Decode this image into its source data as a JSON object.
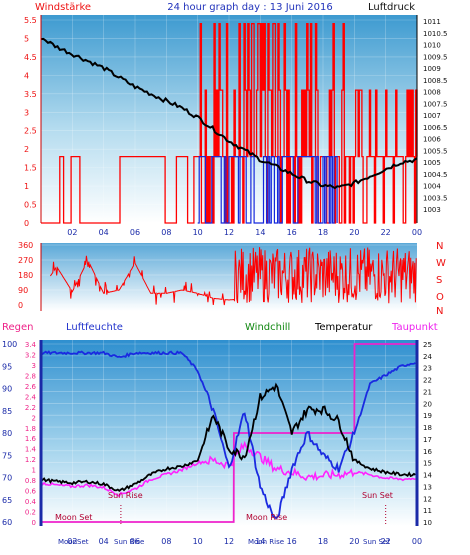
{
  "colors": {
    "wind_label": "#ee1111",
    "title": "#2233bb",
    "pressure_label": "#111111",
    "rain": "#ee2288",
    "humidity": "#2233cc",
    "windchill": "#118811",
    "temperature": "#000000",
    "dewpoint": "#ee22ee",
    "axis_blue": "#1a2aa8",
    "moon": "#b00030",
    "sun": "#b00030"
  },
  "header": {
    "wind_label": "Windstärke",
    "title": "24 hour graph day : 13 Juni 2016",
    "pressure_label": "Luftdruck"
  },
  "legend": {
    "rain": "Regen",
    "humidity": "Luftfeuchte",
    "windchill": "Windchill",
    "temperature": "Temperatur",
    "dewpoint": "Taupunkt"
  },
  "compass": [
    "N",
    "W",
    "S",
    "O",
    "N"
  ],
  "events": {
    "moon_set": "Moon Set",
    "sun_rise": "Sun Rise",
    "moon_rise": "Moon Rise",
    "sun_set": "Sun Set",
    "moon_set_bottom": "MoonSet",
    "sun_rise_bottom": "Sun Rise",
    "moon_rise_bottom": "Moon Rise",
    "sun_set_bottom": "Sun Set"
  },
  "chart_data": [
    {
      "type": "line",
      "title": "24 hour graph day : 13 Juni 2016",
      "x_ticks": [
        "02",
        "04",
        "06",
        "08",
        "10",
        "12",
        "14",
        "16",
        "18",
        "20",
        "22",
        "00"
      ],
      "left_axis": {
        "label": "Windstärke",
        "ylim": [
          0,
          5
        ],
        "ticks": [
          "0",
          "0.5",
          "1",
          "1.5",
          "2",
          "2.5",
          "3",
          "3.5",
          "4",
          "4.5",
          "5",
          "5.5"
        ]
      },
      "right_axis": {
        "label": "Luftdruck",
        "ylim": [
          1003,
          1011
        ],
        "ticks": [
          "1003",
          "1003.5",
          "1004",
          "1004.5",
          "1005",
          "1005.5",
          "1006",
          "1006.5",
          "1007",
          "1007.5",
          "1008",
          "1008.5",
          "1009",
          "1009.5",
          "1010",
          "1010.5",
          "1011"
        ]
      },
      "series": [
        {
          "name": "Luftdruck",
          "x": [
            0,
            1,
            2,
            3,
            4,
            5,
            6,
            7,
            8,
            9,
            10,
            11,
            12,
            13,
            14,
            15,
            16,
            17,
            18,
            19,
            20,
            21,
            22,
            23,
            24
          ],
          "values": [
            1010.3,
            1009.9,
            1009.6,
            1009.3,
            1009.0,
            1008.6,
            1008.2,
            1007.9,
            1007.6,
            1007.3,
            1006.9,
            1006.4,
            1005.9,
            1005.5,
            1005.1,
            1004.8,
            1004.5,
            1004.2,
            1004.0,
            1003.9,
            1004.1,
            1004.4,
            1004.7,
            1005.0,
            1005.1
          ]
        }
      ],
      "wind_note": "gust (red) and average (blue) bars, mostly calm before 10h, gusts to 5.5 between 10h and 19h"
    },
    {
      "type": "line",
      "left_axis": {
        "ticks": [
          "0",
          "90",
          "180",
          "270",
          "360"
        ],
        "ylim": [
          0,
          360
        ]
      },
      "right_axis": {
        "ticks": [
          "N",
          "W",
          "S",
          "O",
          "N"
        ]
      },
      "series": [
        {
          "name": "Windrichtung",
          "x": [
            0,
            1,
            2,
            3,
            4,
            5,
            6,
            7,
            8,
            9,
            10,
            11,
            12,
            13,
            14,
            15,
            16,
            17,
            18,
            19,
            20,
            21,
            22,
            23,
            24
          ],
          "values": [
            90,
            230,
            80,
            270,
            70,
            90,
            250,
            70,
            70,
            90,
            70,
            40,
            30,
            40,
            200,
            240,
            220,
            250,
            180,
            240,
            200,
            160,
            210,
            240,
            260
          ]
        }
      ]
    },
    {
      "type": "line",
      "left_axis_rain": {
        "label": "Regen",
        "ylim": [
          0,
          3.4
        ],
        "ticks": [
          "0",
          "0.2",
          "0.4",
          "0.6",
          "0.8",
          "1",
          "1.2",
          "1.4",
          "1.6",
          "1.8",
          "2",
          "2.2",
          "2.4",
          "2.6",
          "2.8",
          "3",
          "3.2",
          "3.4"
        ]
      },
      "left_axis_humidity": {
        "label": "Luftfeuchte",
        "ylim": [
          60,
          100
        ],
        "ticks": [
          "60",
          "65",
          "70",
          "75",
          "80",
          "85",
          "90",
          "95",
          "100"
        ]
      },
      "right_axis": {
        "label": "Temperatur",
        "ylim": [
          10,
          25
        ],
        "ticks": [
          "10",
          "11",
          "12",
          "13",
          "14",
          "15",
          "16",
          "17",
          "18",
          "19",
          "20",
          "21",
          "22",
          "23",
          "24",
          "25"
        ]
      },
      "series": [
        {
          "name": "Luftfeuchte",
          "x": [
            0,
            1,
            2,
            3,
            4,
            5,
            6,
            7,
            8,
            9,
            10,
            11,
            12,
            13,
            14,
            15,
            16,
            17,
            18,
            19,
            20,
            21,
            22,
            23,
            24
          ],
          "values": [
            98,
            98,
            98,
            98,
            98,
            97,
            98,
            98,
            98,
            98,
            94,
            85,
            72,
            85,
            68,
            60,
            72,
            80,
            75,
            72,
            80,
            91,
            93,
            95,
            96
          ]
        },
        {
          "name": "Temperatur",
          "x": [
            0,
            1,
            2,
            3,
            4,
            5,
            6,
            7,
            8,
            9,
            10,
            11,
            12,
            13,
            14,
            15,
            16,
            17,
            18,
            19,
            20,
            21,
            22,
            23,
            24
          ],
          "values": [
            13.6,
            13.4,
            13.3,
            13.4,
            13.2,
            12.6,
            13.2,
            14.0,
            14.5,
            14.7,
            15.2,
            19.0,
            16.2,
            15.5,
            20.5,
            21.5,
            17.5,
            19.5,
            19.5,
            18.5,
            15.2,
            14.5,
            14.2,
            14.0,
            14.0
          ]
        },
        {
          "name": "Taupunkt",
          "x": [
            0,
            1,
            2,
            3,
            4,
            5,
            6,
            7,
            8,
            9,
            10,
            11,
            12,
            13,
            14,
            15,
            16,
            17,
            18,
            19,
            20,
            21,
            22,
            23,
            24
          ],
          "values": [
            13.3,
            13.1,
            13.0,
            13.1,
            12.9,
            12.3,
            12.8,
            13.6,
            14.0,
            14.4,
            15.0,
            15.2,
            14.8,
            16.5,
            15.5,
            14.5,
            14.2,
            13.8,
            13.9,
            14.0,
            14.2,
            14.0,
            13.7,
            13.6,
            13.7
          ]
        },
        {
          "name": "Regen",
          "x": [
            0,
            12.3,
            12.31,
            20.0,
            20.01,
            24
          ],
          "values": [
            0,
            0,
            1.7,
            1.7,
            3.4,
            3.4
          ]
        }
      ]
    }
  ]
}
